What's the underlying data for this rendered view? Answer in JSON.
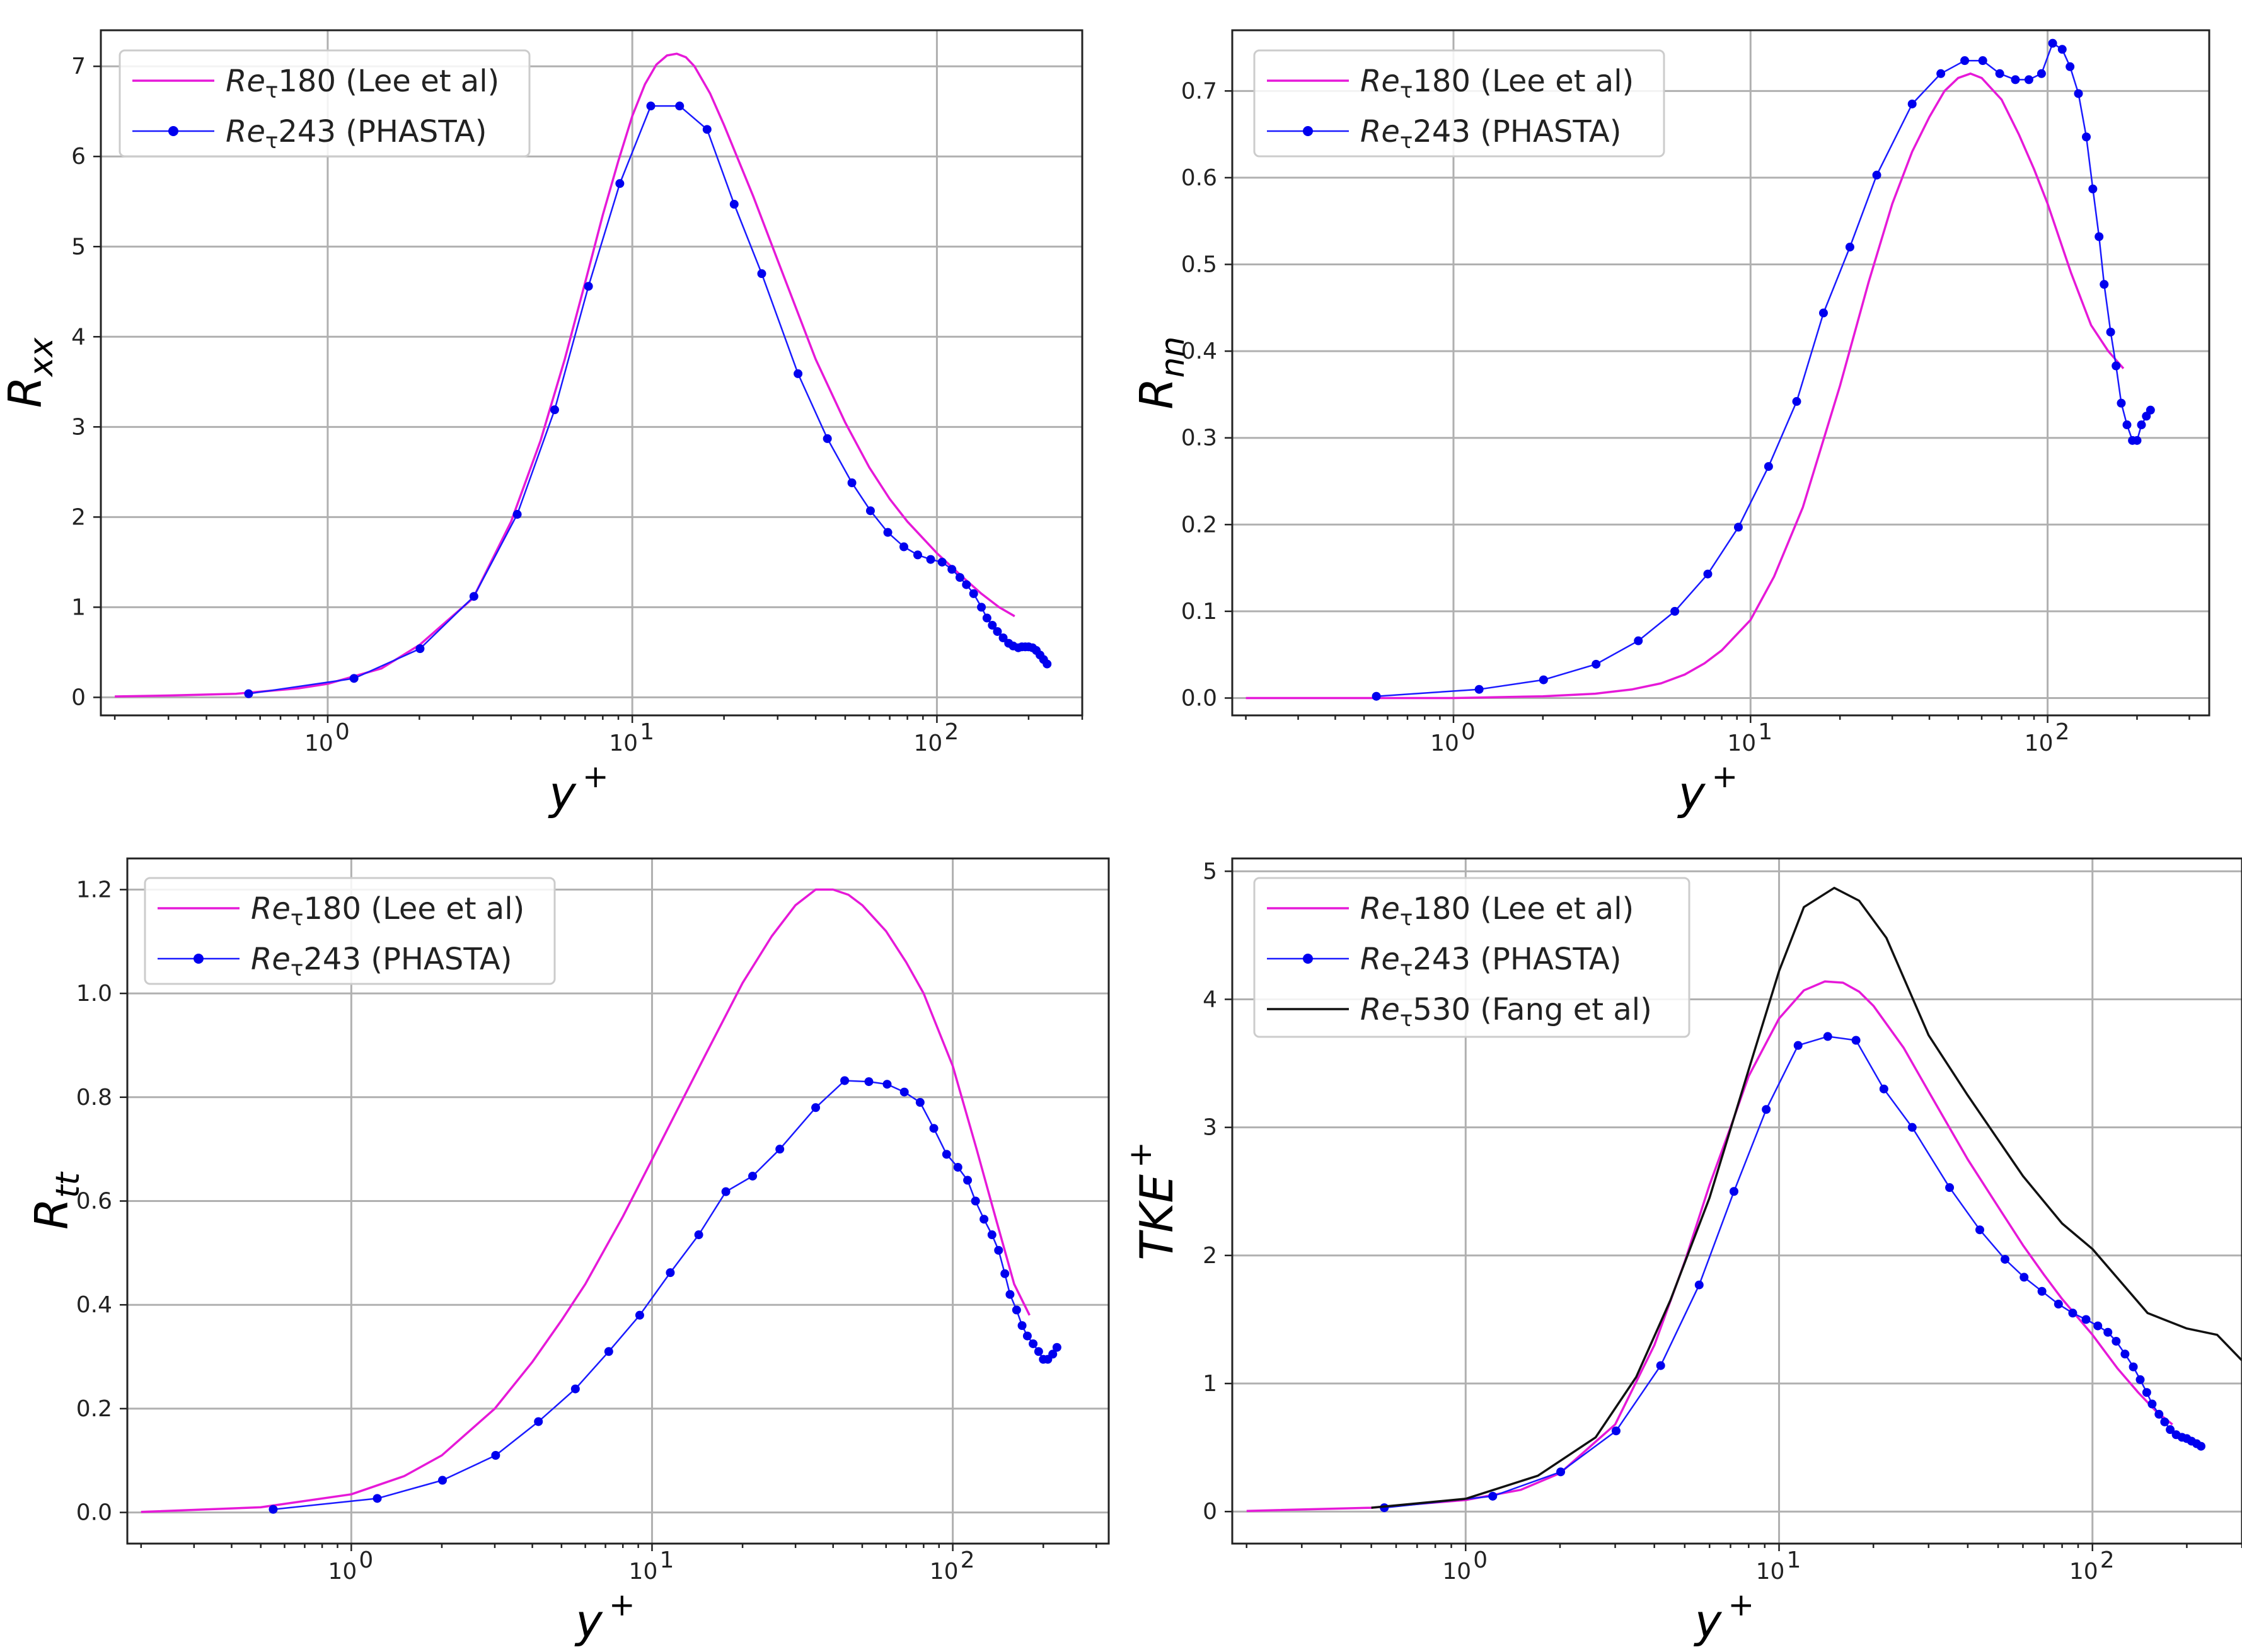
{
  "colors": {
    "lee": "#e619d8",
    "phasta": "#1a1aff",
    "phasta_marker": "#0000ee",
    "fang": "#111111",
    "grid": "#b0b0b0",
    "frame": "#222222"
  },
  "chart_data": [
    {
      "type": "line",
      "id": "rxx",
      "xscale": "log",
      "xlim": [
        0.18,
        300
      ],
      "ylim": [
        -0.2,
        7.4
      ],
      "xlabel": "y",
      "xlabel_sup": "+",
      "ylabel": "R",
      "ylabel_sub": "xx",
      "xticks": [
        {
          "value": 1,
          "label": "10",
          "exp": "0"
        },
        {
          "value": 10,
          "label": "10",
          "exp": "1"
        },
        {
          "value": 100,
          "label": "10",
          "exp": "2"
        }
      ],
      "yticks": [
        {
          "value": 0,
          "label": "0"
        },
        {
          "value": 1,
          "label": "1"
        },
        {
          "value": 2,
          "label": "2"
        },
        {
          "value": 3,
          "label": "3"
        },
        {
          "value": 4,
          "label": "4"
        },
        {
          "value": 5,
          "label": "5"
        },
        {
          "value": 6,
          "label": "6"
        },
        {
          "value": 7,
          "label": "7"
        }
      ],
      "legend_position": "top-left",
      "series": [
        {
          "key": "lee",
          "name_prefix": "Re",
          "name_sub": "τ",
          "name_rest": "180 (Lee et al)",
          "markers": false,
          "x": [
            0.2,
            0.3,
            0.5,
            0.8,
            1.0,
            1.5,
            2.0,
            3.0,
            4.0,
            5.0,
            6.0,
            7.0,
            8.0,
            9.0,
            10.0,
            11.0,
            12.0,
            13.0,
            14.0,
            15.0,
            16.0,
            18.0,
            20.0,
            25.0,
            30.0,
            40.0,
            50.0,
            60.0,
            70.0,
            80.0,
            100.0,
            120.0,
            140.0,
            160.0,
            180.0
          ],
          "y": [
            0.01,
            0.02,
            0.04,
            0.1,
            0.15,
            0.32,
            0.58,
            1.1,
            1.95,
            2.85,
            3.75,
            4.6,
            5.35,
            5.95,
            6.45,
            6.8,
            7.02,
            7.12,
            7.14,
            7.1,
            7.0,
            6.7,
            6.35,
            5.55,
            4.85,
            3.75,
            3.05,
            2.55,
            2.2,
            1.95,
            1.6,
            1.35,
            1.15,
            1.0,
            0.9
          ]
        },
        {
          "key": "phasta",
          "name_prefix": "Re",
          "name_sub": "τ",
          "name_rest": "243 (PHASTA)",
          "markers": true,
          "x": [
            0.55,
            1.22,
            2.01,
            3.02,
            4.19,
            5.56,
            7.18,
            9.1,
            11.5,
            14.3,
            17.6,
            21.6,
            26.6,
            35,
            43.7,
            52.6,
            60.5,
            69,
            77.9,
            86.5,
            95.4,
            104,
            112,
            119,
            125,
            132,
            140,
            146,
            152,
            158,
            165,
            172,
            178,
            185,
            190,
            195,
            200,
            206,
            212,
            218,
            224,
            230
          ],
          "y": [
            0.04,
            0.21,
            0.54,
            1.12,
            2.03,
            3.19,
            4.56,
            5.7,
            6.56,
            6.56,
            6.3,
            5.47,
            4.7,
            3.59,
            2.87,
            2.38,
            2.07,
            1.83,
            1.67,
            1.58,
            1.53,
            1.5,
            1.42,
            1.33,
            1.25,
            1.15,
            1.0,
            0.88,
            0.8,
            0.73,
            0.66,
            0.6,
            0.57,
            0.55,
            0.56,
            0.56,
            0.56,
            0.55,
            0.52,
            0.47,
            0.42,
            0.37
          ]
        }
      ]
    },
    {
      "type": "line",
      "id": "rnn",
      "xscale": "log",
      "xlim": [
        0.18,
        350
      ],
      "ylim": [
        -0.02,
        0.77
      ],
      "xlabel": "y",
      "xlabel_sup": "+",
      "ylabel": "R",
      "ylabel_sub": "nn",
      "xticks": [
        {
          "value": 1,
          "label": "10",
          "exp": "0"
        },
        {
          "value": 10,
          "label": "10",
          "exp": "1"
        },
        {
          "value": 100,
          "label": "10",
          "exp": "2"
        }
      ],
      "yticks": [
        {
          "value": 0,
          "label": "0.0"
        },
        {
          "value": 0.1,
          "label": "0.1"
        },
        {
          "value": 0.2,
          "label": "0.2"
        },
        {
          "value": 0.3,
          "label": "0.3"
        },
        {
          "value": 0.4,
          "label": "0.4"
        },
        {
          "value": 0.5,
          "label": "0.5"
        },
        {
          "value": 0.6,
          "label": "0.6"
        },
        {
          "value": 0.7,
          "label": "0.7"
        }
      ],
      "legend_position": "top-left",
      "series": [
        {
          "key": "lee",
          "name_prefix": "Re",
          "name_sub": "τ",
          "name_rest": "180 (Lee et al)",
          "markers": false,
          "x": [
            0.2,
            0.5,
            1.0,
            2.0,
            3.0,
            4.0,
            5.0,
            6.0,
            7.0,
            8.0,
            10.0,
            12.0,
            15.0,
            20.0,
            25.0,
            30.0,
            35.0,
            40.0,
            45.0,
            50.0,
            55.0,
            60.0,
            70.0,
            80.0,
            90.0,
            100.0,
            120.0,
            140.0,
            160.0,
            180.0
          ],
          "y": [
            0.0,
            0.0,
            0.0,
            0.002,
            0.005,
            0.01,
            0.017,
            0.027,
            0.04,
            0.055,
            0.09,
            0.14,
            0.22,
            0.36,
            0.48,
            0.57,
            0.63,
            0.67,
            0.7,
            0.715,
            0.72,
            0.715,
            0.69,
            0.65,
            0.61,
            0.57,
            0.49,
            0.43,
            0.4,
            0.38
          ]
        },
        {
          "key": "phasta",
          "name_prefix": "Re",
          "name_sub": "τ",
          "name_rest": "243 (PHASTA)",
          "markers": true,
          "x": [
            0.55,
            1.22,
            2.01,
            3.02,
            4.19,
            5.56,
            7.18,
            9.1,
            11.5,
            14.3,
            17.6,
            21.6,
            26.6,
            35,
            43.7,
            52.6,
            60.5,
            69,
            77.9,
            86.5,
            95.4,
            104,
            112,
            119,
            127,
            135,
            142,
            149,
            155,
            163,
            170,
            177,
            185,
            193,
            200,
            207,
            215,
            222
          ],
          "y": [
            0.002,
            0.01,
            0.021,
            0.039,
            0.066,
            0.1,
            0.143,
            0.197,
            0.267,
            0.342,
            0.444,
            0.52,
            0.603,
            0.685,
            0.72,
            0.735,
            0.735,
            0.72,
            0.713,
            0.713,
            0.72,
            0.755,
            0.748,
            0.728,
            0.697,
            0.647,
            0.587,
            0.532,
            0.477,
            0.422,
            0.383,
            0.34,
            0.315,
            0.297,
            0.297,
            0.315,
            0.325,
            0.332
          ]
        }
      ]
    },
    {
      "type": "line",
      "id": "rtt",
      "xscale": "log",
      "xlim": [
        0.18,
        330
      ],
      "ylim": [
        -0.06,
        1.26
      ],
      "xlabel": "y",
      "xlabel_sup": "+",
      "ylabel": "R",
      "ylabel_sub": "tt",
      "xticks": [
        {
          "value": 1,
          "label": "10",
          "exp": "0"
        },
        {
          "value": 10,
          "label": "10",
          "exp": "1"
        },
        {
          "value": 100,
          "label": "10",
          "exp": "2"
        }
      ],
      "yticks": [
        {
          "value": 0,
          "label": "0.0"
        },
        {
          "value": 0.2,
          "label": "0.2"
        },
        {
          "value": 0.4,
          "label": "0.4"
        },
        {
          "value": 0.6,
          "label": "0.6"
        },
        {
          "value": 0.8,
          "label": "0.8"
        },
        {
          "value": 1.0,
          "label": "1.0"
        },
        {
          "value": 1.2,
          "label": "1.2"
        }
      ],
      "legend_position": "top-left",
      "series": [
        {
          "key": "lee",
          "name_prefix": "Re",
          "name_sub": "τ",
          "name_rest": "180 (Lee et al)",
          "markers": false,
          "x": [
            0.2,
            0.5,
            1.0,
            1.5,
            2.0,
            3.0,
            4.0,
            5.0,
            6.0,
            8.0,
            10.0,
            12.0,
            15.0,
            20.0,
            25.0,
            30.0,
            35.0,
            40.0,
            45.0,
            50.0,
            60.0,
            70.0,
            80.0,
            100.0,
            120.0,
            140.0,
            160.0,
            180.0
          ],
          "y": [
            0.001,
            0.01,
            0.035,
            0.07,
            0.11,
            0.2,
            0.29,
            0.37,
            0.44,
            0.57,
            0.68,
            0.77,
            0.88,
            1.02,
            1.11,
            1.17,
            1.2,
            1.2,
            1.19,
            1.17,
            1.12,
            1.06,
            1.0,
            0.86,
            0.7,
            0.56,
            0.44,
            0.38
          ]
        },
        {
          "key": "phasta",
          "name_prefix": "Re",
          "name_sub": "τ",
          "name_rest": "243 (PHASTA)",
          "markers": true,
          "x": [
            0.55,
            1.22,
            2.01,
            3.02,
            4.19,
            5.56,
            7.18,
            9.1,
            11.5,
            14.3,
            17.6,
            21.6,
            26.6,
            35,
            43.7,
            52.6,
            60.5,
            69,
            77.9,
            86.5,
            95.4,
            104,
            112,
            119,
            127,
            135,
            142,
            149,
            155,
            163,
            170,
            177,
            185,
            193,
            200,
            207,
            215,
            222
          ],
          "y": [
            0.006,
            0.027,
            0.062,
            0.11,
            0.175,
            0.238,
            0.31,
            0.38,
            0.462,
            0.535,
            0.618,
            0.648,
            0.7,
            0.78,
            0.832,
            0.83,
            0.825,
            0.81,
            0.79,
            0.74,
            0.69,
            0.665,
            0.64,
            0.6,
            0.565,
            0.535,
            0.505,
            0.46,
            0.42,
            0.39,
            0.36,
            0.34,
            0.325,
            0.31,
            0.295,
            0.295,
            0.305,
            0.318
          ]
        }
      ]
    },
    {
      "type": "line",
      "id": "tke",
      "xscale": "log",
      "xlim": [
        0.18,
        300
      ],
      "ylim": [
        -0.25,
        5.1
      ],
      "xlabel": "y",
      "xlabel_sup": "+",
      "ylabel": "TKE",
      "ylabel_sup": "+",
      "xticks": [
        {
          "value": 1,
          "label": "10",
          "exp": "0"
        },
        {
          "value": 10,
          "label": "10",
          "exp": "1"
        },
        {
          "value": 100,
          "label": "10",
          "exp": "2"
        }
      ],
      "yticks": [
        {
          "value": 0,
          "label": "0"
        },
        {
          "value": 1,
          "label": "1"
        },
        {
          "value": 2,
          "label": "2"
        },
        {
          "value": 3,
          "label": "3"
        },
        {
          "value": 4,
          "label": "4"
        },
        {
          "value": 5,
          "label": "5"
        }
      ],
      "legend_position": "top-left",
      "series": [
        {
          "key": "lee",
          "name_prefix": "Re",
          "name_sub": "τ",
          "name_rest": "180 (Lee et al)",
          "markers": false,
          "x": [
            0.2,
            0.5,
            1.0,
            1.5,
            2.0,
            3.0,
            4.0,
            5.0,
            6.0,
            7.0,
            8.0,
            10.0,
            12.0,
            14.0,
            16.0,
            18.0,
            20.0,
            25.0,
            30.0,
            40.0,
            50.0,
            60.0,
            70.0,
            80.0,
            100.0,
            120.0,
            140.0,
            160.0,
            180.0
          ],
          "y": [
            0.005,
            0.03,
            0.09,
            0.17,
            0.3,
            0.68,
            1.3,
            1.95,
            2.55,
            3.0,
            3.4,
            3.85,
            4.07,
            4.14,
            4.13,
            4.06,
            3.95,
            3.62,
            3.28,
            2.75,
            2.38,
            2.08,
            1.85,
            1.66,
            1.38,
            1.12,
            0.93,
            0.78,
            0.68
          ]
        },
        {
          "key": "phasta",
          "name_prefix": "Re",
          "name_sub": "τ",
          "name_rest": "243 (PHASTA)",
          "markers": true,
          "x": [
            0.55,
            1.22,
            2.01,
            3.02,
            4.19,
            5.56,
            7.18,
            9.1,
            11.5,
            14.3,
            17.6,
            21.6,
            26.6,
            35,
            43.7,
            52.6,
            60.5,
            69,
            77.9,
            86.5,
            95.4,
            104,
            112,
            119,
            127,
            135,
            142,
            149,
            155,
            163,
            170,
            177,
            185,
            193,
            200,
            207,
            215,
            222
          ],
          "y": [
            0.03,
            0.12,
            0.31,
            0.63,
            1.14,
            1.77,
            2.5,
            3.14,
            3.64,
            3.71,
            3.68,
            3.3,
            3.0,
            2.53,
            2.2,
            1.97,
            1.83,
            1.72,
            1.62,
            1.55,
            1.5,
            1.45,
            1.4,
            1.33,
            1.23,
            1.13,
            1.03,
            0.93,
            0.84,
            0.76,
            0.7,
            0.64,
            0.6,
            0.58,
            0.57,
            0.55,
            0.53,
            0.51
          ]
        },
        {
          "key": "fang",
          "name_prefix": "Re",
          "name_sub": "τ",
          "name_rest": "530 (Fang et al)",
          "markers": false,
          "x": [
            0.5,
            1.0,
            1.7,
            2.6,
            3.5,
            4.5,
            6.0,
            8.0,
            10.0,
            12.0,
            15.0,
            18.0,
            22.0,
            30.0,
            40.0,
            60.0,
            80.0,
            100.0,
            150.0,
            200.0,
            250.0,
            300.0
          ],
          "y": [
            0.03,
            0.1,
            0.28,
            0.58,
            1.05,
            1.65,
            2.45,
            3.45,
            4.22,
            4.72,
            4.87,
            4.77,
            4.48,
            3.72,
            3.25,
            2.62,
            2.25,
            2.05,
            1.55,
            1.43,
            1.38,
            1.18
          ]
        }
      ]
    }
  ]
}
